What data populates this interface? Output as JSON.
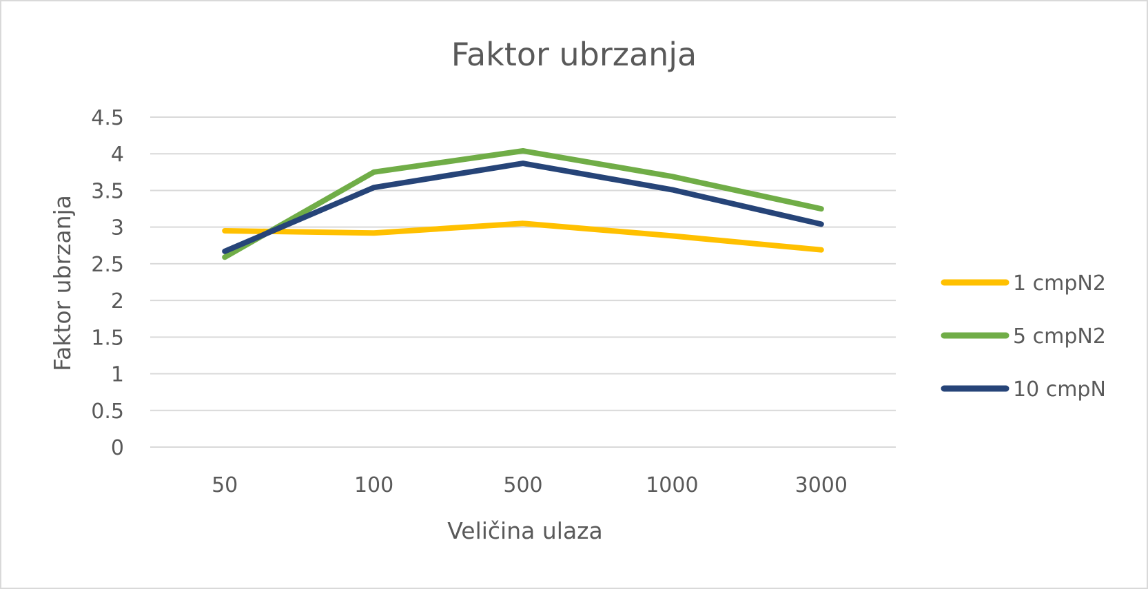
{
  "chart_data": {
    "type": "line",
    "title": "Faktor ubrzanja",
    "xlabel": "Veličina ulaza",
    "ylabel": "Faktor ubrzanja",
    "categories": [
      "50",
      "100",
      "500",
      "1000",
      "3000"
    ],
    "ylim": [
      0,
      4.5
    ],
    "yticks": [
      "0",
      "0.5",
      "1",
      "1.5",
      "2",
      "2.5",
      "3",
      "3.5",
      "4",
      "4.5"
    ],
    "grid": true,
    "legend_position": "right",
    "series": [
      {
        "name": "1 cmpN2",
        "color": "#ffc000",
        "values": [
          2.95,
          2.92,
          3.05,
          2.88,
          2.69
        ]
      },
      {
        "name": "5 cmpN2",
        "color": "#70ad47",
        "values": [
          2.59,
          3.75,
          4.04,
          3.69,
          3.25
        ]
      },
      {
        "name": "10 cmpN",
        "color": "#264478",
        "values": [
          2.67,
          3.54,
          3.87,
          3.51,
          3.04
        ]
      }
    ]
  }
}
